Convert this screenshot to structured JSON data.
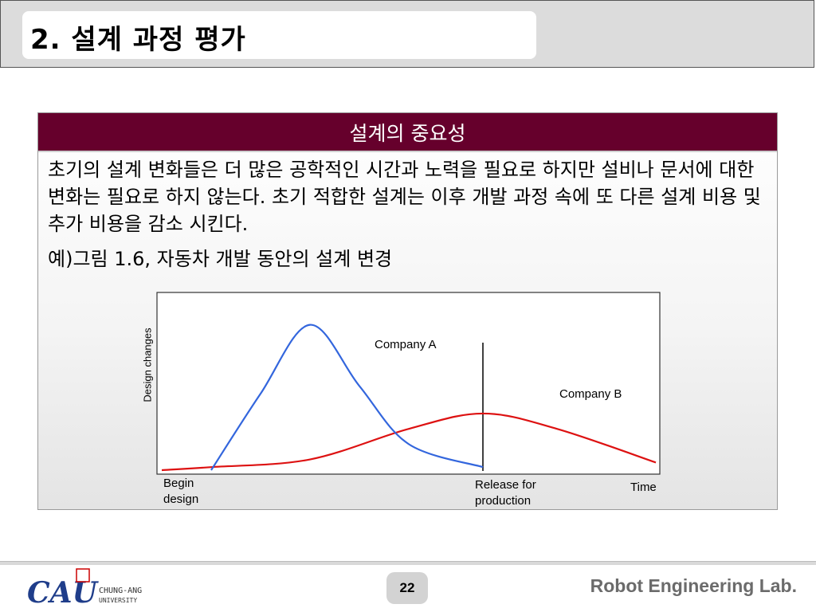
{
  "slide": {
    "title": "2. 설계 과정 평가"
  },
  "panel": {
    "header": "설계의 중요성",
    "paragraph": "초기의 설계 변화들은 더 많은 공학적인 시간과 노력을 필요로 하지만 설비나 문서에 대한 변화는 필요로 하지 않는다. 초기 적합한 설계는 이후 개발 과정 속에 또 다른 설계 비용 및 추가 비용을 감소 시킨다.",
    "example": "예)그림 1.6, 자동차 개발 동안의 설계 변경"
  },
  "chart_data": {
    "type": "line",
    "xlabel": "Time",
    "ylabel": "Design changes",
    "grid": false,
    "x_annotations": [
      {
        "label": "Begin design",
        "x": 0.1
      },
      {
        "label": "Release for production",
        "x": 0.65
      }
    ],
    "series": [
      {
        "name": "Company A",
        "color": "#3366dd",
        "x": [
          0.1,
          0.2,
          0.3,
          0.4,
          0.5,
          0.65
        ],
        "y": [
          0.0,
          0.5,
          0.95,
          0.55,
          0.17,
          0.02
        ]
      },
      {
        "name": "Company B",
        "color": "#dd1111",
        "x": [
          0.0,
          0.1,
          0.3,
          0.5,
          0.65,
          0.8,
          1.0
        ],
        "y": [
          0.0,
          0.02,
          0.07,
          0.27,
          0.37,
          0.27,
          0.05
        ]
      }
    ],
    "xlim": [
      0,
      1
    ],
    "ylim": [
      0,
      1
    ]
  },
  "footer": {
    "university": "CHUNG-ANG UNIVERSITY",
    "page_number": "22",
    "lab_name": "Robot Engineering Lab."
  },
  "colors": {
    "header_band": "#dcdcdc",
    "panel_header": "#66002c",
    "logo_blue": "#1f3d8a",
    "logo_red": "#cc0000"
  }
}
